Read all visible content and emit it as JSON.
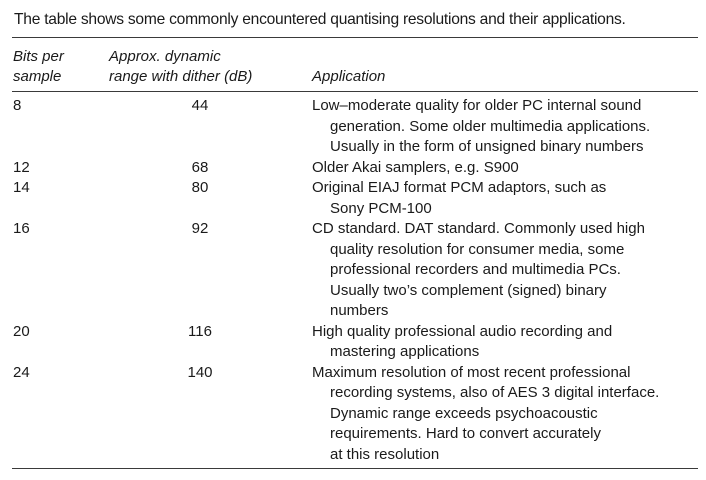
{
  "caption": "The table shows some commonly encountered quantising resolutions and their applications.",
  "table": {
    "headers": {
      "bits": [
        "Bits per",
        "sample"
      ],
      "range": [
        "Approx. dynamic",
        "range with dither (dB)"
      ],
      "application": "Application"
    },
    "rows": [
      {
        "bits": "8",
        "range": "44",
        "application": [
          "Low–moderate quality for older PC internal sound",
          "generation. Some older multimedia applications.",
          "Usually in the form of unsigned binary numbers"
        ]
      },
      {
        "bits": "12",
        "range": "68",
        "application": [
          "Older Akai samplers, e.g. S900"
        ]
      },
      {
        "bits": "14",
        "range": "80",
        "application": [
          "Original EIAJ format PCM adaptors, such as",
          "Sony PCM-100"
        ]
      },
      {
        "bits": "16",
        "range": "92",
        "application": [
          "CD standard. DAT standard. Commonly used high",
          "quality resolution for consumer media, some",
          "professional recorders and multimedia PCs.",
          "Usually two’s complement (signed) binary",
          "numbers"
        ]
      },
      {
        "bits": "20",
        "range": "116",
        "application": [
          "High quality professional audio recording and",
          "mastering applications"
        ]
      },
      {
        "bits": "24",
        "range": "140",
        "application": [
          "Maximum resolution of most recent professional",
          "recording systems, also of AES 3 digital interface.",
          "Dynamic range exceeds psychoacoustic",
          "requirements. Hard to convert accurately",
          "at this resolution"
        ]
      }
    ]
  }
}
